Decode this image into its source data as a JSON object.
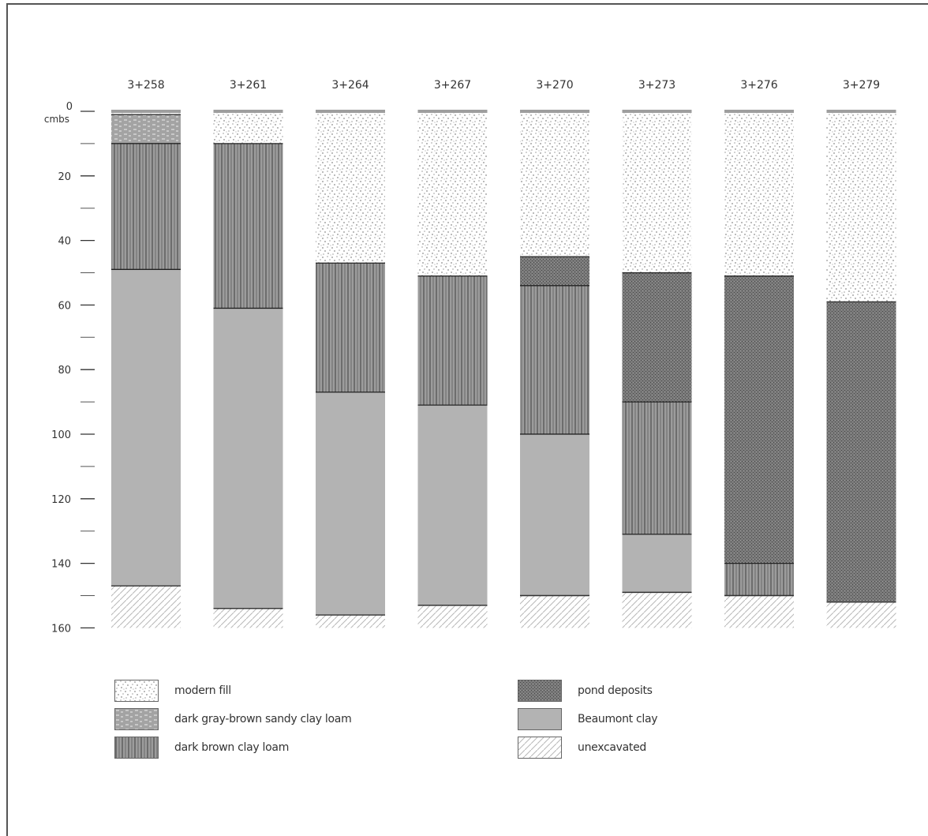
{
  "chart_data": {
    "type": "stratigraphic-column",
    "depth_unit_label": "cmbs",
    "depth_range": [
      0,
      160
    ],
    "y_ticks_major": [
      0,
      20,
      40,
      60,
      80,
      100,
      120,
      140,
      160
    ],
    "y_ticks_minor": [
      10,
      30,
      50,
      70,
      90,
      110,
      130,
      150
    ],
    "columns": [
      {
        "label": "3+258",
        "layers": [
          {
            "type": "modern",
            "from": 0,
            "to": 1
          },
          {
            "type": "darkgray",
            "from": 1,
            "to": 10
          },
          {
            "type": "darkbrown",
            "from": 10,
            "to": 49
          },
          {
            "type": "beaumont",
            "from": 49,
            "to": 147
          },
          {
            "type": "unexcavated",
            "from": 147,
            "to": 160
          }
        ]
      },
      {
        "label": "3+261",
        "layers": [
          {
            "type": "modern",
            "from": 0,
            "to": 10
          },
          {
            "type": "darkbrown",
            "from": 10,
            "to": 61
          },
          {
            "type": "beaumont",
            "from": 61,
            "to": 154
          },
          {
            "type": "unexcavated",
            "from": 154,
            "to": 160
          }
        ]
      },
      {
        "label": "3+264",
        "layers": [
          {
            "type": "modern",
            "from": 0,
            "to": 47
          },
          {
            "type": "darkbrown",
            "from": 47,
            "to": 87
          },
          {
            "type": "beaumont",
            "from": 87,
            "to": 156
          },
          {
            "type": "unexcavated",
            "from": 156,
            "to": 160
          }
        ]
      },
      {
        "label": "3+267",
        "layers": [
          {
            "type": "modern",
            "from": 0,
            "to": 51
          },
          {
            "type": "darkbrown",
            "from": 51,
            "to": 91
          },
          {
            "type": "beaumont",
            "from": 91,
            "to": 153
          },
          {
            "type": "unexcavated",
            "from": 153,
            "to": 160
          }
        ]
      },
      {
        "label": "3+270",
        "layers": [
          {
            "type": "modern",
            "from": 0,
            "to": 45
          },
          {
            "type": "pond",
            "from": 45,
            "to": 54
          },
          {
            "type": "darkbrown",
            "from": 54,
            "to": 100
          },
          {
            "type": "beaumont",
            "from": 100,
            "to": 150
          },
          {
            "type": "unexcavated",
            "from": 150,
            "to": 160
          }
        ]
      },
      {
        "label": "3+273",
        "layers": [
          {
            "type": "modern",
            "from": 0,
            "to": 50
          },
          {
            "type": "pond",
            "from": 50,
            "to": 90
          },
          {
            "type": "darkbrown",
            "from": 90,
            "to": 131
          },
          {
            "type": "beaumont",
            "from": 131,
            "to": 149
          },
          {
            "type": "unexcavated",
            "from": 149,
            "to": 160
          }
        ]
      },
      {
        "label": "3+276",
        "layers": [
          {
            "type": "modern",
            "from": 0,
            "to": 51
          },
          {
            "type": "pond",
            "from": 51,
            "to": 140
          },
          {
            "type": "darkbrown",
            "from": 140,
            "to": 150
          },
          {
            "type": "unexcavated",
            "from": 150,
            "to": 160
          }
        ]
      },
      {
        "label": "3+279",
        "layers": [
          {
            "type": "modern",
            "from": 0,
            "to": 59
          },
          {
            "type": "pond",
            "from": 59,
            "to": 152
          },
          {
            "type": "unexcavated",
            "from": 152,
            "to": 160
          }
        ]
      }
    ]
  },
  "legend": [
    {
      "key": "modern",
      "label": "modern fill"
    },
    {
      "key": "darkgray",
      "label": "dark gray-brown sandy clay loam"
    },
    {
      "key": "darkbrown",
      "label": "dark brown clay loam"
    },
    {
      "key": "pond",
      "label": "pond deposits"
    },
    {
      "key": "beaumont",
      "label": "Beaumont clay"
    },
    {
      "key": "unexcavated",
      "label": "unexcavated"
    }
  ],
  "colors": {
    "beaumont": "#b3b3b3",
    "pond": "#6d6d6d",
    "darkbrown": "#9a9a9a",
    "darkgray": "#a6a6a6",
    "modern": "#ffffff",
    "cap": "#9e9e9e"
  }
}
